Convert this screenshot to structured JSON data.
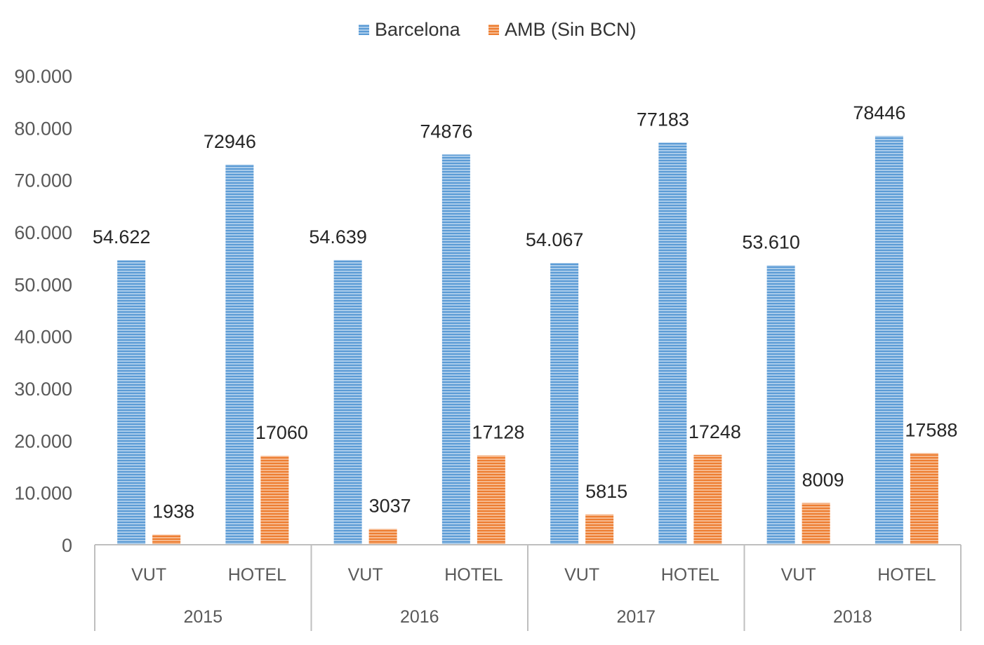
{
  "chart_data": {
    "type": "bar",
    "groups": [
      {
        "year": "2015",
        "categories": [
          "VUT",
          "HOTEL"
        ]
      },
      {
        "year": "2016",
        "categories": [
          "VUT",
          "HOTEL"
        ]
      },
      {
        "year": "2017",
        "categories": [
          "VUT",
          "HOTEL"
        ]
      },
      {
        "year": "2018",
        "categories": [
          "VUT",
          "HOTEL"
        ]
      }
    ],
    "series": [
      {
        "name": "Barcelona",
        "color": "#5b9bd5",
        "values": [
          54622,
          72946,
          54639,
          74876,
          54067,
          77183,
          53610,
          78446
        ],
        "labels": [
          "54.622",
          "72946",
          "54.639",
          "74876",
          "54.067",
          "77183",
          "53.610",
          "78446"
        ]
      },
      {
        "name": "AMB (Sin BCN)",
        "color": "#ed7d31",
        "values": [
          1938,
          17060,
          3037,
          17128,
          5815,
          17248,
          8009,
          17588
        ],
        "labels": [
          "1938",
          "17060",
          "3037",
          "17128",
          "5815",
          "17248",
          "8009",
          "17588"
        ]
      }
    ],
    "yticks": [
      "0",
      "10.000",
      "20.000",
      "30.000",
      "40.000",
      "50.000",
      "60.000",
      "70.000",
      "80.000",
      "90.000"
    ],
    "ylim": [
      0,
      90000
    ],
    "legend_position": "top-center",
    "grid": false
  }
}
